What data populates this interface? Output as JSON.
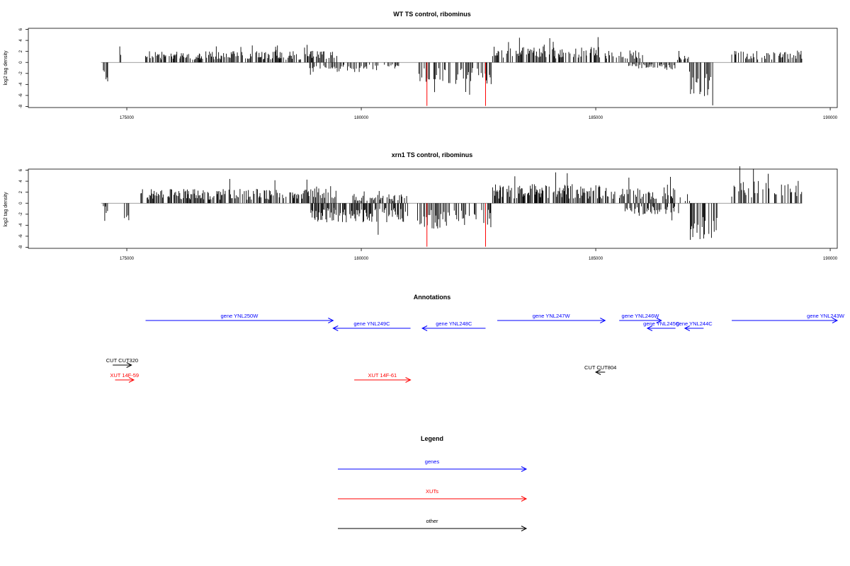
{
  "colors": {
    "genes": "#0000ff",
    "xuts": "#ff0000",
    "other": "#000000",
    "bars": "#000000",
    "baseline": "#808080",
    "highlight": "#ff0000"
  },
  "chart_data": [
    {
      "type": "bar",
      "title": "WT TS control, ribominus",
      "xlabel": "",
      "ylabel": "log2 tag density",
      "xlim": [
        172900,
        190150
      ],
      "ylim": [
        -8.2,
        6.2
      ],
      "xticks": [
        175000,
        180000,
        185000,
        190000
      ],
      "yticks": [
        6,
        4,
        2,
        0,
        -2,
        -4,
        -6,
        -8
      ],
      "highlight_bars": [
        {
          "x": 181400,
          "y": -7.9
        },
        {
          "x": 182650,
          "y": -7.9
        }
      ],
      "regions": [
        {
          "from": 174500,
          "to": 174600,
          "sign": -1,
          "mean": 2.5
        },
        {
          "from": 174850,
          "to": 174900,
          "sign": 1,
          "mean": 2.5
        },
        {
          "from": 175400,
          "to": 178900,
          "sign": 1,
          "mean": 1.4
        },
        {
          "from": 178900,
          "to": 179500,
          "sign": 1,
          "mean": 1.6
        },
        {
          "from": 178900,
          "to": 180100,
          "sign": -1,
          "mean": 1.2
        },
        {
          "from": 180100,
          "to": 180800,
          "sign": -1,
          "mean": 1.0
        },
        {
          "from": 181200,
          "to": 182800,
          "sign": -1,
          "mean": 2.8
        },
        {
          "from": 182800,
          "to": 185100,
          "sign": 1,
          "mean": 2.0
        },
        {
          "from": 185200,
          "to": 186000,
          "sign": 1,
          "mean": 1.6
        },
        {
          "from": 185700,
          "to": 186700,
          "sign": -1,
          "mean": 0.8
        },
        {
          "from": 186700,
          "to": 187000,
          "sign": 1,
          "mean": 1.0
        },
        {
          "from": 187000,
          "to": 187500,
          "sign": -1,
          "mean": 4.5
        },
        {
          "from": 187900,
          "to": 189400,
          "sign": 1,
          "mean": 1.5
        }
      ]
    },
    {
      "type": "bar",
      "title": "xrn1 TS control, ribominus",
      "xlabel": "",
      "ylabel": "log2 tag density",
      "xlim": [
        172900,
        190150
      ],
      "ylim": [
        -8.2,
        6.2
      ],
      "xticks": [
        175000,
        180000,
        185000,
        190000
      ],
      "yticks": [
        6,
        4,
        2,
        0,
        -2,
        -4,
        -6,
        -8
      ],
      "highlight_bars": [
        {
          "x": 181400,
          "y": -7.9
        },
        {
          "x": 182650,
          "y": -7.9
        }
      ],
      "regions": [
        {
          "from": 174500,
          "to": 174600,
          "sign": -1,
          "mean": 1.5
        },
        {
          "from": 174950,
          "to": 175050,
          "sign": -1,
          "mean": 2.5
        },
        {
          "from": 175300,
          "to": 178900,
          "sign": 1,
          "mean": 1.8
        },
        {
          "from": 178900,
          "to": 179500,
          "sign": 1,
          "mean": 2.2
        },
        {
          "from": 178900,
          "to": 181000,
          "sign": -1,
          "mean": 2.4
        },
        {
          "from": 179800,
          "to": 181000,
          "sign": 1,
          "mean": 1.2
        },
        {
          "from": 181200,
          "to": 182800,
          "sign": -1,
          "mean": 3.2
        },
        {
          "from": 182800,
          "to": 185100,
          "sign": 1,
          "mean": 2.4
        },
        {
          "from": 185100,
          "to": 186700,
          "sign": 1,
          "mean": 2.0
        },
        {
          "from": 185600,
          "to": 186800,
          "sign": -1,
          "mean": 1.4
        },
        {
          "from": 186800,
          "to": 187000,
          "sign": 1,
          "mean": 1.0
        },
        {
          "from": 187000,
          "to": 187600,
          "sign": -1,
          "mean": 4.8
        },
        {
          "from": 187900,
          "to": 189400,
          "sign": 1,
          "mean": 2.8
        }
      ]
    }
  ],
  "annotations": {
    "title": "Annotations",
    "xlim": [
      172900,
      190150
    ],
    "features": [
      {
        "label": "gene YNL250W",
        "type": "genes",
        "strand": "+",
        "start": 175400,
        "end": 179400,
        "row": 0
      },
      {
        "label": "gene YNL249C",
        "type": "genes",
        "strand": "-",
        "start": 179400,
        "end": 181050,
        "row": 1
      },
      {
        "label": "gene YNL248C",
        "type": "genes",
        "strand": "-",
        "start": 181300,
        "end": 182650,
        "row": 1
      },
      {
        "label": "gene YNL247W",
        "type": "genes",
        "strand": "+",
        "start": 182900,
        "end": 185200,
        "row": 0
      },
      {
        "label": "gene YNL246W",
        "type": "genes",
        "strand": "+",
        "start": 185500,
        "end": 186400,
        "row": 0
      },
      {
        "label": "gene YNL245C",
        "type": "genes",
        "strand": "-",
        "start": 186100,
        "end": 186700,
        "row": 1
      },
      {
        "label": "gene YNL244C",
        "type": "genes",
        "strand": "-",
        "start": 186900,
        "end": 187300,
        "row": 1
      },
      {
        "label": "gene YNL243W",
        "type": "genes",
        "strand": "+",
        "start": 187900,
        "end": 190150,
        "row": 0
      },
      {
        "label": "CUT CUT320",
        "type": "other",
        "strand": "+",
        "start": 174700,
        "end": 175100,
        "row": 2
      },
      {
        "label": "CUT CUT804",
        "type": "other",
        "strand": "-",
        "start": 185000,
        "end": 185200,
        "row": 3
      },
      {
        "label": "XUT 14F-59",
        "type": "xuts",
        "strand": "+",
        "start": 174750,
        "end": 175150,
        "row": 4
      },
      {
        "label": "XUT 14F-61",
        "type": "xuts",
        "strand": "+",
        "start": 179850,
        "end": 181050,
        "row": 4
      }
    ]
  },
  "legend": {
    "title": "Legend",
    "items": [
      {
        "label": "genes",
        "type": "genes"
      },
      {
        "label": "XUTs",
        "type": "xuts"
      },
      {
        "label": "other",
        "type": "other"
      }
    ]
  }
}
